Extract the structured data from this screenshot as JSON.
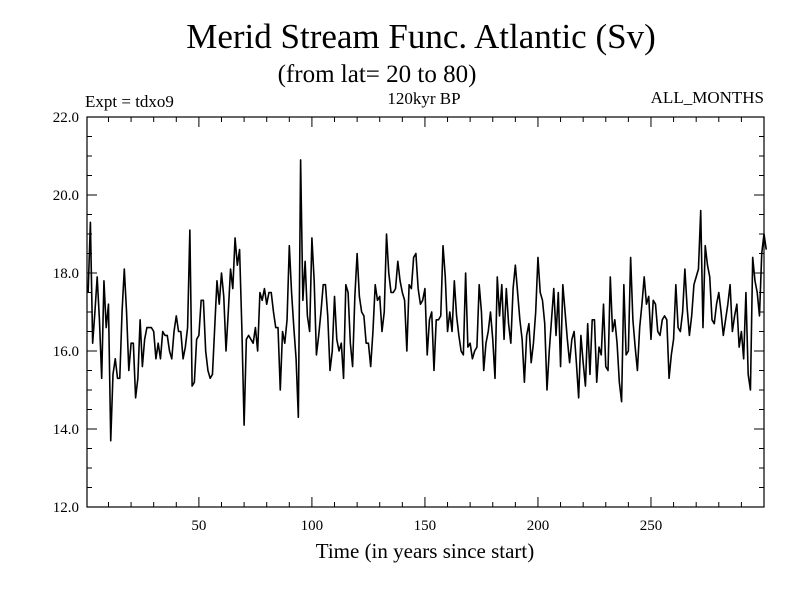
{
  "chart_data": {
    "type": "line",
    "title": "Merid Stream Func. Atlantic (Sv)",
    "subtitle": "(from lat= 20 to 80)",
    "annotation_left": "Expt = tdxo9",
    "annotation_center": "120kyr BP",
    "annotation_right": "ALL_MONTHS",
    "xlabel": "Time (in years since start)",
    "ylabel": "",
    "xlim": [
      0.5,
      300
    ],
    "ylim": [
      12.0,
      22.0
    ],
    "x_ticks": [
      50,
      100,
      150,
      200,
      250
    ],
    "y_ticks": [
      12.0,
      14.0,
      16.0,
      18.0,
      20.0,
      22.0
    ],
    "x_tick_labels": [
      "50",
      "100",
      "150",
      "200",
      "250"
    ],
    "y_tick_labels": [
      "12.0",
      "14.0",
      "16.0",
      "18.0",
      "20.0",
      "22.0"
    ],
    "grid": false,
    "line_color": "#000000",
    "series": [
      {
        "x_start": 1,
        "x_step": 1,
        "values": [
          17.5,
          19.3,
          16.2,
          17.0,
          17.9,
          16.8,
          15.3,
          17.8,
          16.6,
          17.2,
          13.7,
          15.4,
          15.8,
          15.3,
          15.3,
          17.0,
          18.1,
          17.0,
          15.5,
          16.2,
          16.2,
          14.8,
          15.3,
          16.8,
          15.6,
          16.3,
          16.6,
          16.6,
          16.6,
          16.5,
          15.8,
          16.2,
          15.8,
          16.5,
          16.4,
          16.4,
          16.0,
          15.8,
          16.5,
          16.9,
          16.5,
          16.5,
          15.8,
          16.1,
          16.6,
          19.1,
          15.1,
          15.2,
          16.3,
          16.4,
          17.3,
          17.3,
          16.0,
          15.5,
          15.3,
          15.4,
          16.6,
          17.8,
          17.2,
          18.0,
          17.4,
          16.0,
          17.0,
          18.1,
          17.6,
          18.9,
          18.2,
          18.6,
          16.6,
          14.1,
          16.3,
          16.4,
          16.3,
          16.2,
          16.6,
          16.0,
          17.5,
          17.3,
          17.6,
          17.2,
          17.5,
          17.5,
          17.0,
          16.6,
          16.6,
          15.0,
          16.5,
          16.2,
          16.8,
          18.7,
          17.5,
          16.6,
          15.8,
          14.3,
          20.9,
          17.3,
          18.3,
          16.9,
          16.5,
          18.9,
          17.8,
          15.9,
          16.4,
          17.0,
          17.7,
          17.7,
          16.9,
          15.5,
          16.0,
          17.4,
          16.3,
          16.0,
          16.2,
          15.3,
          17.7,
          17.5,
          16.2,
          15.6,
          17.4,
          18.5,
          17.4,
          17.0,
          16.9,
          16.2,
          16.2,
          15.6,
          16.5,
          17.7,
          17.3,
          17.4,
          16.5,
          17.0,
          19.0,
          18.0,
          17.5,
          17.5,
          17.6,
          18.3,
          17.8,
          17.5,
          17.3,
          16.0,
          17.7,
          17.6,
          18.4,
          18.5,
          17.6,
          17.2,
          17.3,
          17.6,
          15.9,
          16.8,
          17.0,
          15.5,
          16.8,
          16.8,
          16.9,
          18.7,
          17.9,
          16.5,
          17.0,
          16.5,
          17.8,
          16.9,
          16.4,
          16.0,
          15.9,
          18.0,
          16.1,
          16.2,
          15.8,
          16.0,
          16.1,
          17.7,
          17.0,
          15.5,
          16.2,
          16.5,
          17.0,
          16.3,
          15.3,
          17.9,
          16.9,
          17.7,
          16.3,
          17.6,
          16.7,
          16.2,
          17.6,
          18.2,
          17.5,
          16.8,
          16.3,
          15.2,
          16.4,
          16.7,
          15.7,
          16.2,
          17.0,
          18.4,
          17.5,
          17.3,
          16.7,
          15.0,
          16.0,
          16.8,
          17.6,
          16.4,
          17.5,
          15.6,
          17.7,
          17.0,
          16.3,
          15.7,
          16.3,
          16.5,
          15.7,
          14.8,
          16.4,
          15.7,
          15.1,
          16.7,
          15.4,
          16.8,
          16.8,
          15.2,
          16.1,
          15.9,
          17.2,
          15.6,
          15.5,
          17.9,
          16.5,
          16.8,
          16.2,
          15.2,
          14.7,
          17.7,
          15.9,
          16.0,
          18.4,
          16.8,
          16.1,
          15.5,
          16.6,
          17.2,
          17.9,
          17.2,
          17.4,
          16.3,
          17.3,
          17.2,
          16.5,
          16.4,
          16.8,
          16.9,
          16.8,
          15.3,
          15.9,
          16.3,
          17.7,
          16.6,
          16.5,
          17.0,
          18.1,
          17.1,
          16.4,
          16.9,
          17.7,
          17.9,
          18.1,
          19.6,
          16.6,
          18.7,
          18.2,
          17.9,
          16.8,
          16.7,
          17.2,
          17.5,
          17.0,
          16.4,
          16.8,
          17.2,
          17.7,
          16.5,
          16.9,
          17.2,
          16.1,
          16.5,
          15.8,
          17.5,
          15.4,
          15.0,
          18.4,
          17.8,
          17.5,
          16.9,
          18.5,
          19.0,
          18.6
        ]
      }
    ]
  }
}
